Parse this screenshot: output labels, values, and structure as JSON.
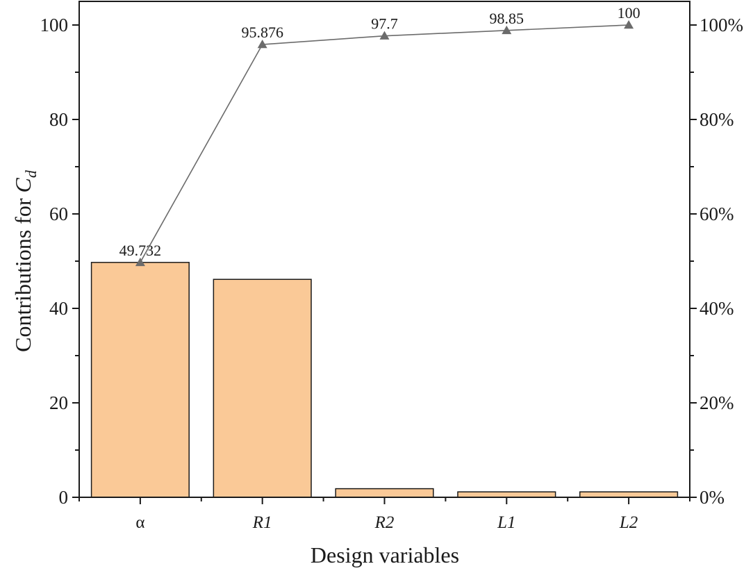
{
  "chart_data": {
    "type": "bar",
    "categories": [
      "α",
      "R1",
      "R2",
      "L1",
      "L2"
    ],
    "categories_italic": [
      false,
      true,
      true,
      true,
      true
    ],
    "values": [
      49.732,
      46.144,
      1.824,
      1.15,
      1.15
    ],
    "cumulative": [
      49.732,
      95.876,
      97.7,
      98.85,
      100
    ],
    "cumulative_labels": [
      "49.732",
      "95.876",
      "97.7",
      "98.85",
      "100"
    ],
    "xlabel": "Design variables",
    "ylabel_prefix": "Contributions for ",
    "ylabel_symbol": "C",
    "ylabel_subscript": "d",
    "ylim": [
      0,
      105
    ],
    "y_ticks": [
      "0",
      "20",
      "40",
      "60",
      "80",
      "100"
    ],
    "y2_ticks": [
      "0%",
      "20%",
      "40%",
      "60%",
      "80%",
      "100%"
    ],
    "y2lim": [
      0,
      105
    ],
    "colors": {
      "bar_fill": "#FAC997",
      "bar_stroke": "#1a1a1a",
      "line": "#6b6b6b",
      "marker": "#6b6b6b",
      "axis": "#1a1a1a"
    },
    "grid": false,
    "legend": "none"
  }
}
